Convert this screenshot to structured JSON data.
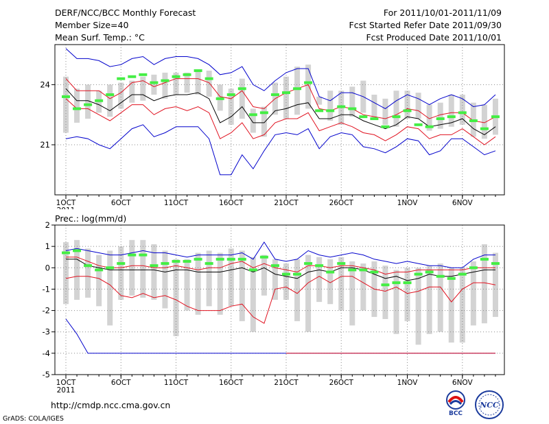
{
  "header": {
    "title": "DERF/NCC/BCC Monthly Forecast",
    "member_size": "Member Size=40",
    "variable": "Mean Surf. Temp.: °C",
    "period": "For 2011/10/01-2011/11/09",
    "fcst_started": "Fcst Started Refer Date 2011/09/30",
    "fcst_produced": "Fcst Produced Date 2011/10/01"
  },
  "footer": {
    "url": "http://cmdp.ncc.cma.gov.cn",
    "grads": "GrADS: COLA/IGES",
    "logo_left": "BCC",
    "logo_right": "NCC"
  },
  "colors": {
    "box": "#d3d3d3",
    "median": "#44ee44",
    "mean": "#000000",
    "spread": "#e0101e",
    "envelope": "#0000cc",
    "grid": "#888888"
  },
  "chart_data": [
    {
      "type": "box-ensemble",
      "title": "Mean Surf. Temp.: °C",
      "xlabel": "",
      "ylabel": "",
      "ylim": [
        18.5,
        26
      ],
      "yticks": [
        21,
        24
      ],
      "ytick_labels": [
        "21",
        "24"
      ],
      "xtick_days": [
        1,
        6,
        11,
        16,
        21,
        26,
        32,
        37
      ],
      "xtick_labels": [
        "1OCT",
        "6OCT",
        "11OCT",
        "16OCT",
        "21OCT",
        "26OCT",
        "1NOV",
        "6NOV"
      ],
      "xtick_sub": "2011",
      "days": [
        1,
        2,
        3,
        4,
        5,
        6,
        7,
        8,
        9,
        10,
        11,
        12,
        13,
        14,
        15,
        16,
        17,
        18,
        19,
        20,
        21,
        22,
        23,
        24,
        25,
        26,
        27,
        28,
        29,
        30,
        31,
        32,
        33,
        34,
        35,
        36,
        37,
        38,
        39,
        40
      ],
      "box_low": [
        21.6,
        22.1,
        22.3,
        22.6,
        22.4,
        22.8,
        23.1,
        23.2,
        23.5,
        23.3,
        23.5,
        23.6,
        23.5,
        23.4,
        22.7,
        22.0,
        22.3,
        21.6,
        21.4,
        22.5,
        22.3,
        22.5,
        22.8,
        23.0,
        22.2,
        22.0,
        22.4,
        22.6,
        22.3,
        22.0,
        21.9,
        22.3,
        22.3,
        21.7,
        21.8,
        21.9,
        22.0,
        21.4,
        21.3,
        21.5
      ],
      "box_high": [
        24.4,
        23.8,
        24.0,
        23.7,
        24.0,
        24.1,
        24.2,
        24.4,
        24.5,
        24.6,
        24.6,
        24.6,
        24.7,
        24.7,
        24.0,
        23.8,
        24.3,
        22.8,
        22.9,
        24.1,
        24.4,
        24.9,
        25.0,
        23.4,
        23.7,
        23.7,
        23.9,
        24.2,
        23.5,
        23.3,
        23.7,
        23.7,
        23.6,
        23.0,
        23.1,
        23.5,
        23.5,
        23.1,
        23.0,
        23.3
      ],
      "median": [
        23.4,
        22.8,
        23.0,
        23.2,
        23.5,
        24.3,
        24.4,
        24.5,
        24.1,
        24.2,
        24.4,
        24.5,
        24.7,
        24.3,
        23.3,
        23.5,
        23.8,
        22.5,
        22.6,
        23.5,
        23.6,
        23.8,
        24.1,
        22.7,
        22.7,
        22.9,
        22.8,
        22.4,
        22.3,
        21.9,
        22.4,
        22.7,
        22.0,
        21.9,
        22.3,
        22.4,
        22.6,
        22.2,
        21.8,
        22.4
      ],
      "series": [
        {
          "name": "max",
          "color_key": "envelope",
          "values": [
            25.8,
            25.3,
            25.3,
            25.2,
            24.9,
            25.0,
            25.3,
            25.4,
            25.0,
            25.3,
            25.4,
            25.4,
            25.3,
            25.0,
            24.5,
            24.6,
            24.9,
            24.0,
            23.7,
            24.2,
            24.6,
            24.8,
            24.8,
            23.4,
            23.2,
            23.6,
            23.6,
            23.4,
            23.1,
            22.8,
            23.2,
            23.5,
            23.3,
            23.0,
            23.3,
            23.5,
            23.3,
            22.9,
            23.0,
            23.5
          ]
        },
        {
          "name": "mean_plus_sd",
          "color_key": "spread",
          "values": [
            24.3,
            23.7,
            23.7,
            23.7,
            23.3,
            23.6,
            24.1,
            24.2,
            23.9,
            24.1,
            24.3,
            24.3,
            24.3,
            24.1,
            23.4,
            23.3,
            23.7,
            22.9,
            22.8,
            23.3,
            23.6,
            23.8,
            24.0,
            22.8,
            22.7,
            22.9,
            22.8,
            22.5,
            22.4,
            22.3,
            22.5,
            22.8,
            22.7,
            22.3,
            22.5,
            22.6,
            22.6,
            22.2,
            22.1,
            22.4
          ]
        },
        {
          "name": "mean",
          "color_key": "mean",
          "values": [
            23.8,
            23.2,
            23.2,
            23.0,
            22.7,
            23.1,
            23.5,
            23.5,
            23.2,
            23.4,
            23.5,
            23.5,
            23.6,
            23.3,
            22.1,
            22.4,
            22.9,
            22.1,
            22.1,
            22.7,
            22.8,
            23.0,
            23.1,
            22.3,
            22.3,
            22.5,
            22.5,
            22.2,
            22.0,
            21.8,
            22.0,
            22.4,
            22.3,
            21.9,
            22.0,
            22.1,
            22.3,
            21.8,
            21.5,
            21.9
          ]
        },
        {
          "name": "mean_minus_sd",
          "color_key": "spread",
          "values": [
            23.3,
            22.8,
            22.8,
            22.5,
            22.2,
            22.6,
            23.0,
            23.0,
            22.5,
            22.8,
            22.9,
            22.7,
            22.9,
            22.6,
            21.3,
            21.6,
            22.1,
            21.3,
            21.5,
            22.1,
            22.3,
            22.3,
            22.6,
            21.7,
            21.9,
            22.1,
            21.9,
            21.6,
            21.5,
            21.2,
            21.5,
            21.9,
            21.8,
            21.3,
            21.5,
            21.5,
            21.8,
            21.4,
            21.0,
            21.4
          ]
        },
        {
          "name": "min",
          "color_key": "envelope",
          "values": [
            21.3,
            21.4,
            21.3,
            21.0,
            20.8,
            21.3,
            21.8,
            22.0,
            21.4,
            21.6,
            21.9,
            21.9,
            21.9,
            21.3,
            19.5,
            19.5,
            20.5,
            19.8,
            20.7,
            21.5,
            21.6,
            21.5,
            21.8,
            20.8,
            21.4,
            21.6,
            21.5,
            20.9,
            20.8,
            20.6,
            20.9,
            21.3,
            21.2,
            20.5,
            20.7,
            21.3,
            21.3,
            20.9,
            20.5,
            20.7
          ]
        }
      ]
    },
    {
      "type": "box-ensemble",
      "title": "Prec.: log(mm/d)",
      "xlabel": "",
      "ylabel": "",
      "ylim": [
        -5,
        2
      ],
      "yticks": [
        -5,
        -4,
        -3,
        -2,
        -1,
        0,
        1,
        2
      ],
      "ytick_labels": [
        "-5",
        "-4",
        "-3",
        "-2",
        "-1",
        "0",
        "1",
        "2"
      ],
      "xtick_days": [
        1,
        6,
        11,
        16,
        21,
        26,
        32,
        37
      ],
      "xtick_labels": [
        "1OCT",
        "6OCT",
        "11OCT",
        "16OCT",
        "21OCT",
        "26OCT",
        "1NOV",
        "6NOV"
      ],
      "xtick_sub": "2011",
      "days": [
        1,
        2,
        3,
        4,
        5,
        6,
        7,
        8,
        9,
        10,
        11,
        12,
        13,
        14,
        15,
        16,
        17,
        18,
        19,
        20,
        21,
        22,
        23,
        24,
        25,
        26,
        27,
        28,
        29,
        30,
        31,
        32,
        33,
        34,
        35,
        36,
        37,
        38,
        39,
        40
      ],
      "box_low": [
        -1.7,
        -1.5,
        -1.4,
        -1.8,
        -2.7,
        -1.5,
        -1.3,
        -1.4,
        -1.5,
        -1.9,
        -3.2,
        -2.0,
        -2.2,
        -1.8,
        -2.2,
        -1.8,
        -2.5,
        -3.0,
        -1.3,
        -1.5,
        -1.5,
        -2.5,
        -3.0,
        -1.6,
        -1.7,
        -2.0,
        -2.7,
        -2.0,
        -2.3,
        -2.4,
        -3.1,
        -2.5,
        -3.6,
        -3.1,
        -3.0,
        -3.5,
        -3.5,
        -2.7,
        -2.6,
        -2.3
      ],
      "box_high": [
        1.2,
        1.3,
        0.9,
        0.6,
        0.8,
        1.0,
        1.3,
        1.3,
        1.1,
        0.8,
        0.4,
        0.4,
        0.7,
        0.8,
        0.7,
        0.9,
        0.8,
        0.5,
        0.6,
        0.4,
        0.2,
        0.4,
        0.6,
        0.5,
        0.4,
        0.5,
        0.3,
        0.2,
        0.3,
        0.1,
        -0.1,
        0.0,
        0.0,
        0.1,
        0.2,
        0.0,
        0.0,
        0.3,
        1.1,
        0.7
      ],
      "median": [
        0.7,
        0.8,
        0.1,
        -0.1,
        0.0,
        0.2,
        0.6,
        0.6,
        0.1,
        0.2,
        0.3,
        0.3,
        0.4,
        0.2,
        0.4,
        0.4,
        0.4,
        -0.1,
        0.5,
        0.1,
        -0.3,
        -0.3,
        0.2,
        0.1,
        -0.2,
        0.2,
        -0.1,
        -0.1,
        -0.2,
        -0.8,
        -0.7,
        -0.7,
        -0.3,
        -0.2,
        -0.4,
        -0.5,
        -0.3,
        0.0,
        0.4,
        0.2
      ],
      "series": [
        {
          "name": "max",
          "color_key": "envelope",
          "values": [
            0.8,
            0.9,
            0.8,
            0.7,
            0.6,
            0.6,
            0.7,
            0.8,
            0.7,
            0.7,
            0.6,
            0.5,
            0.6,
            0.6,
            0.6,
            0.6,
            0.7,
            0.4,
            1.2,
            0.4,
            0.3,
            0.4,
            0.8,
            0.6,
            0.5,
            0.6,
            0.7,
            0.6,
            0.4,
            0.3,
            0.2,
            0.3,
            0.2,
            0.1,
            0.1,
            0.0,
            0.0,
            0.4,
            0.6,
            0.6
          ]
        },
        {
          "name": "mean_plus_sd",
          "color_key": "spread",
          "values": [
            0.5,
            0.5,
            0.3,
            0.1,
            0.0,
            0.0,
            0.1,
            0.1,
            0.0,
            0.0,
            0.1,
            0.0,
            -0.1,
            0.0,
            0.0,
            0.2,
            0.3,
            0.0,
            0.2,
            0.0,
            -0.1,
            -0.2,
            0.1,
            0.1,
            0.0,
            0.1,
            0.1,
            0.0,
            -0.1,
            -0.3,
            -0.2,
            -0.2,
            -0.1,
            -0.1,
            -0.1,
            -0.1,
            -0.1,
            0.0,
            0.0,
            0.0
          ]
        },
        {
          "name": "mean",
          "color_key": "mean",
          "values": [
            0.4,
            0.4,
            0.1,
            0.0,
            -0.1,
            -0.1,
            -0.1,
            -0.1,
            -0.1,
            -0.2,
            -0.1,
            -0.1,
            -0.2,
            -0.2,
            -0.2,
            -0.1,
            0.0,
            -0.2,
            0.0,
            -0.3,
            -0.4,
            -0.5,
            -0.2,
            -0.1,
            -0.2,
            0.0,
            0.0,
            -0.1,
            -0.3,
            -0.5,
            -0.4,
            -0.6,
            -0.5,
            -0.3,
            -0.4,
            -0.4,
            -0.3,
            -0.2,
            -0.1,
            -0.1
          ]
        },
        {
          "name": "mean_minus_sd",
          "color_key": "spread",
          "values": [
            -0.5,
            -0.4,
            -0.4,
            -0.5,
            -0.8,
            -1.3,
            -1.4,
            -1.2,
            -1.4,
            -1.3,
            -1.5,
            -1.8,
            -2.0,
            -2.0,
            -2.0,
            -1.8,
            -1.7,
            -2.3,
            -2.6,
            -1.0,
            -0.9,
            -1.2,
            -0.7,
            -0.4,
            -0.7,
            -0.4,
            -0.4,
            -0.7,
            -1.0,
            -1.1,
            -0.9,
            -1.2,
            -1.1,
            -0.9,
            -0.9,
            -1.6,
            -1.0,
            -0.7,
            -0.7,
            -0.8
          ]
        },
        {
          "name": "min",
          "color_key": "envelope",
          "values": [
            -2.4,
            -3.1,
            -4.0,
            -4.0,
            -4.0,
            -4.0,
            -4.0,
            -4.0,
            -4.0,
            -4.0,
            -4.0,
            -4.0,
            -4.0,
            -4.0,
            -4.0,
            -4.0,
            -4.0,
            -4.0,
            -4.0,
            -4.0,
            -4.0,
            -4.0,
            -4.0,
            -4.0,
            -4.0,
            -4.0,
            -4.0,
            -4.0,
            -4.0,
            -4.0,
            -4.0,
            -4.0,
            -4.0,
            -4.0,
            -4.0,
            -4.0,
            -4.0,
            -4.0,
            -4.0,
            -4.0
          ]
        }
      ],
      "overlay_series": [
        {
          "name": "mean_minus_sd_floor",
          "color_key": "spread",
          "from_day": 21,
          "values": [
            -4.0,
            -4.0,
            -4.0,
            -4.0,
            -4.0,
            -4.0,
            -4.0,
            -4.0,
            -4.0,
            -4.0,
            -4.0,
            -4.0,
            -4.0,
            -4.0,
            -4.0,
            -4.0,
            -4.0,
            -4.0,
            -4.0,
            -4.0
          ]
        }
      ]
    }
  ]
}
